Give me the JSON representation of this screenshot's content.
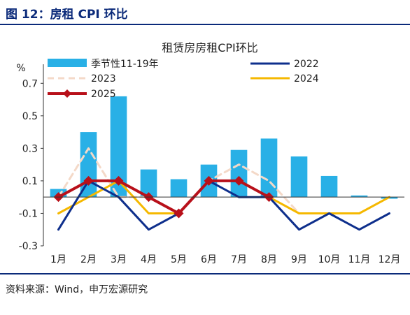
{
  "header": {
    "figure_title": "图 12：房租 CPI 环比"
  },
  "footer": {
    "source": "资料来源：Wind，申万宏源研究"
  },
  "colors": {
    "accent": "#0b2a7a",
    "bars": "#29b0e6",
    "s2022": "#0e2f8c",
    "s2023": "#f4d9c8",
    "s2024": "#f5b800",
    "s2025": "#b8101a"
  },
  "chart_data": {
    "type": "bar",
    "title": "租赁房房租CPI环比",
    "ylabel": "%",
    "ylim": [
      -0.3,
      0.8
    ],
    "yticks": [
      -0.3,
      -0.1,
      0.1,
      0.3,
      0.5,
      0.7
    ],
    "ytick_labels": [
      "-0.3",
      "-0.1",
      "0.1",
      "0.3",
      "0.5",
      "0.7"
    ],
    "categories": [
      "1月",
      "2月",
      "3月",
      "4月",
      "5月",
      "6月",
      "7月",
      "8月",
      "9月",
      "10月",
      "11月",
      "12月"
    ],
    "legend_position": "top",
    "grid": false,
    "bar_series": {
      "name": "季节性11-19年",
      "values": [
        0.05,
        0.4,
        0.62,
        0.17,
        0.11,
        0.2,
        0.29,
        0.36,
        0.25,
        0.13,
        0.01,
        -0.01
      ]
    },
    "series": [
      {
        "name": "2022",
        "style": "solid",
        "values": [
          -0.2,
          0.1,
          0.0,
          -0.2,
          -0.1,
          0.1,
          0.0,
          0.0,
          -0.2,
          -0.1,
          -0.2,
          -0.1
        ]
      },
      {
        "name": "2023",
        "style": "dashed",
        "values": [
          0.0,
          0.3,
          0.0,
          0.0,
          -0.1,
          0.1,
          0.2,
          0.1,
          -0.1,
          null,
          null,
          null
        ]
      },
      {
        "name": "2024",
        "style": "solid",
        "values": [
          -0.1,
          0.0,
          0.1,
          -0.1,
          -0.1,
          0.1,
          0.1,
          0.0,
          -0.1,
          -0.1,
          -0.1,
          0.0
        ]
      },
      {
        "name": "2025",
        "style": "marker",
        "values": [
          0.0,
          0.1,
          0.1,
          0.0,
          -0.1,
          0.1,
          0.1,
          0.0,
          null,
          null,
          null,
          null
        ]
      }
    ]
  }
}
